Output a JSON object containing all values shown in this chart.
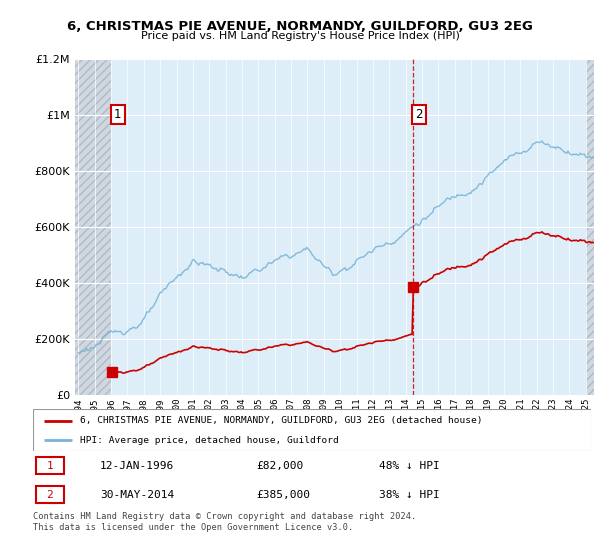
{
  "title": "6, CHRISTMAS PIE AVENUE, NORMANDY, GUILDFORD, GU3 2EG",
  "subtitle": "Price paid vs. HM Land Registry's House Price Index (HPI)",
  "legend_label_red": "6, CHRISTMAS PIE AVENUE, NORMANDY, GUILDFORD, GU3 2EG (detached house)",
  "legend_label_blue": "HPI: Average price, detached house, Guildford",
  "annotation1_date": "12-JAN-1996",
  "annotation1_price": "£82,000",
  "annotation1_hpi": "48% ↓ HPI",
  "annotation2_date": "30-MAY-2014",
  "annotation2_price": "£385,000",
  "annotation2_hpi": "38% ↓ HPI",
  "footer": "Contains HM Land Registry data © Crown copyright and database right 2024.\nThis data is licensed under the Open Government Licence v3.0.",
  "sale1_year": 1996.04,
  "sale1_price": 82000,
  "sale2_year": 2014.42,
  "sale2_price": 385000,
  "hpi_color": "#7ab4d8",
  "sale_color": "#cc0000",
  "bg_blue": "#ddeef8",
  "bg_hatch": "#c8c8d8",
  "ylim_max": 1200000,
  "xlim_min": 1993.8,
  "xlim_max": 2025.5
}
